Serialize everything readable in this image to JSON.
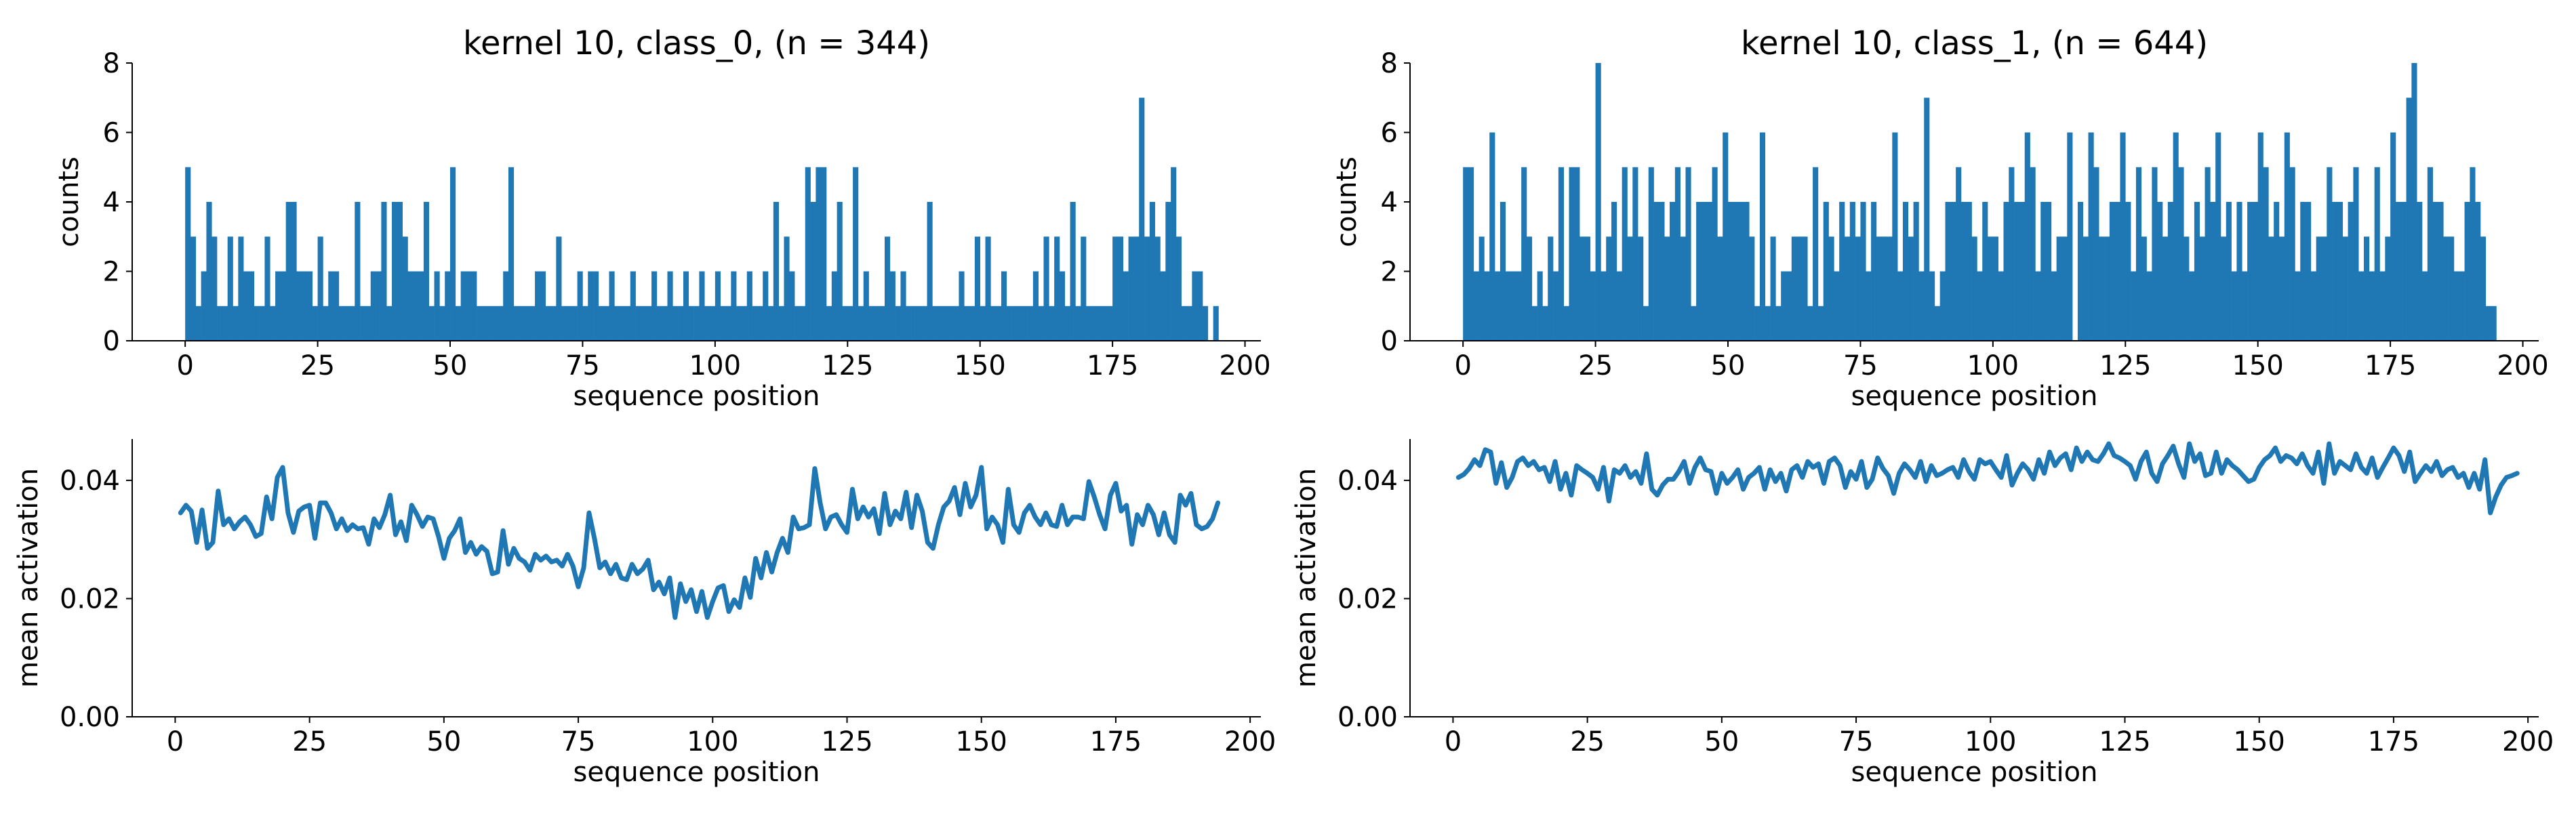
{
  "chart_data": [
    {
      "type": "bar",
      "title": "kernel 10, class_0, (n = 344)",
      "xlabel": "sequence position",
      "ylabel": "counts",
      "xlim": [
        -10,
        203
      ],
      "ylim": [
        0,
        8
      ],
      "xticks": [
        0,
        25,
        50,
        75,
        100,
        125,
        150,
        175,
        200
      ],
      "yticks": [
        0,
        2,
        4,
        6,
        8
      ],
      "grid": false,
      "color": "#1f77b4",
      "x_start": 0,
      "values": [
        5,
        3,
        1,
        2,
        4,
        3,
        1,
        1,
        3,
        1,
        3,
        2,
        2,
        1,
        1,
        3,
        1,
        2,
        2,
        4,
        4,
        2,
        2,
        2,
        1,
        3,
        1,
        2,
        2,
        1,
        1,
        1,
        4,
        1,
        1,
        2,
        2,
        4,
        1,
        4,
        4,
        3,
        2,
        2,
        2,
        4,
        1,
        2,
        1,
        2,
        5,
        1,
        2,
        2,
        2,
        1,
        1,
        1,
        1,
        1,
        2,
        5,
        1,
        1,
        1,
        1,
        2,
        2,
        1,
        1,
        3,
        1,
        1,
        1,
        2,
        1,
        2,
        2,
        1,
        1,
        2,
        1,
        1,
        1,
        2,
        1,
        1,
        1,
        2,
        1,
        1,
        2,
        1,
        1,
        2,
        1,
        1,
        2,
        1,
        1,
        2,
        1,
        1,
        2,
        1,
        1,
        2,
        1,
        1,
        2,
        1,
        4,
        1,
        3,
        2,
        1,
        1,
        5,
        4,
        5,
        5,
        1,
        2,
        4,
        1,
        1,
        5,
        1,
        2,
        1,
        1,
        1,
        3,
        2,
        1,
        2,
        1,
        1,
        1,
        1,
        4,
        1,
        1,
        1,
        1,
        1,
        2,
        1,
        1,
        3,
        1,
        3,
        1,
        1,
        2,
        1,
        1,
        1,
        1,
        1,
        2,
        1,
        3,
        1,
        3,
        2,
        1,
        4,
        1,
        3,
        1,
        1,
        1,
        1,
        1,
        3,
        3,
        2,
        3,
        3,
        7,
        3,
        4,
        3,
        2,
        4,
        5,
        3,
        1,
        1,
        2,
        2,
        1,
        0,
        1
      ]
    },
    {
      "type": "bar",
      "title": "kernel 10, class_1, (n = 644)",
      "xlabel": "sequence position",
      "ylabel": "counts",
      "xlim": [
        -10,
        203
      ],
      "ylim": [
        0,
        8
      ],
      "xticks": [
        0,
        25,
        50,
        75,
        100,
        125,
        150,
        175,
        200
      ],
      "yticks": [
        0,
        2,
        4,
        6,
        8
      ],
      "grid": false,
      "color": "#1f77b4",
      "x_start": 0,
      "values": [
        5,
        5,
        2,
        3,
        2,
        6,
        2,
        4,
        2,
        2,
        2,
        5,
        3,
        1,
        2,
        1,
        3,
        2,
        5,
        1,
        5,
        5,
        3,
        3,
        2,
        8,
        2,
        3,
        4,
        2,
        5,
        3,
        5,
        3,
        1,
        5,
        4,
        4,
        3,
        4,
        5,
        3,
        5,
        1,
        4,
        4,
        4,
        5,
        3,
        6,
        4,
        4,
        4,
        4,
        3,
        1,
        6,
        1,
        3,
        1,
        2,
        2,
        3,
        3,
        3,
        1,
        5,
        1,
        4,
        3,
        2,
        4,
        3,
        4,
        3,
        4,
        2,
        4,
        3,
        3,
        3,
        6,
        2,
        4,
        3,
        4,
        2,
        7,
        2,
        1,
        2,
        4,
        4,
        5,
        4,
        4,
        3,
        2,
        4,
        3,
        3,
        2,
        4,
        5,
        4,
        4,
        6,
        5,
        2,
        4,
        4,
        2,
        3,
        3,
        6,
        0,
        4,
        3,
        6,
        5,
        3,
        3,
        4,
        4,
        6,
        4,
        2,
        5,
        3,
        2,
        5,
        4,
        3,
        4,
        6,
        5,
        3,
        2,
        4,
        3,
        5,
        4,
        6,
        3,
        4,
        2,
        4,
        2,
        4,
        4,
        6,
        5,
        3,
        4,
        3,
        6,
        5,
        2,
        4,
        4,
        2,
        3,
        3,
        5,
        4,
        4,
        3,
        4,
        5,
        2,
        3,
        2,
        5,
        2,
        3,
        6,
        4,
        4,
        7,
        8,
        4,
        2,
        5,
        4,
        4,
        3,
        3,
        2,
        2,
        4,
        5,
        4,
        3,
        1,
        1
      ]
    },
    {
      "type": "line",
      "xlabel": "sequence position",
      "ylabel": "mean activation",
      "xlim": [
        -8,
        202
      ],
      "ylim": [
        0,
        0.047
      ],
      "xticks": [
        0,
        25,
        50,
        75,
        100,
        125,
        150,
        175,
        200
      ],
      "yticks": [
        0.0,
        0.02,
        0.04
      ],
      "ytick_labels": [
        "0.00",
        "0.02",
        "0.04"
      ],
      "grid": false,
      "color": "#1f77b4",
      "x_start": 1,
      "values": [
        0.0345,
        0.0358,
        0.0348,
        0.0295,
        0.035,
        0.0285,
        0.0295,
        0.0382,
        0.0325,
        0.0335,
        0.0318,
        0.033,
        0.0338,
        0.0325,
        0.0305,
        0.031,
        0.0372,
        0.0335,
        0.0405,
        0.0422,
        0.0345,
        0.0312,
        0.0348,
        0.0355,
        0.0358,
        0.0302,
        0.0362,
        0.0362,
        0.0345,
        0.0318,
        0.0335,
        0.0315,
        0.0325,
        0.0318,
        0.032,
        0.0292,
        0.0335,
        0.032,
        0.0342,
        0.0375,
        0.0308,
        0.033,
        0.0298,
        0.0358,
        0.0342,
        0.0322,
        0.0338,
        0.0335,
        0.0305,
        0.0268,
        0.0302,
        0.0315,
        0.0335,
        0.0278,
        0.0295,
        0.0275,
        0.0288,
        0.028,
        0.0242,
        0.0245,
        0.0315,
        0.0258,
        0.0285,
        0.0268,
        0.0262,
        0.0248,
        0.0275,
        0.0265,
        0.0272,
        0.0262,
        0.0265,
        0.0255,
        0.0275,
        0.0255,
        0.022,
        0.0252,
        0.0345,
        0.0302,
        0.0252,
        0.0262,
        0.0242,
        0.0258,
        0.0235,
        0.0232,
        0.0258,
        0.0242,
        0.025,
        0.0265,
        0.0215,
        0.0228,
        0.0208,
        0.0235,
        0.0168,
        0.0225,
        0.0195,
        0.0215,
        0.0178,
        0.0212,
        0.0168,
        0.0195,
        0.0218,
        0.0222,
        0.0178,
        0.0198,
        0.0185,
        0.0235,
        0.0202,
        0.0268,
        0.0235,
        0.0278,
        0.0245,
        0.0278,
        0.0302,
        0.0278,
        0.0338,
        0.0318,
        0.032,
        0.0325,
        0.042,
        0.0362,
        0.0318,
        0.0338,
        0.0342,
        0.0325,
        0.0312,
        0.0385,
        0.0335,
        0.0355,
        0.0338,
        0.0352,
        0.031,
        0.0378,
        0.0325,
        0.0348,
        0.0335,
        0.038,
        0.032,
        0.0375,
        0.0348,
        0.0295,
        0.0285,
        0.0325,
        0.0355,
        0.0365,
        0.0388,
        0.0342,
        0.0395,
        0.0355,
        0.0375,
        0.0422,
        0.0318,
        0.0338,
        0.0325,
        0.0295,
        0.0385,
        0.0325,
        0.0312,
        0.0345,
        0.0358,
        0.0338,
        0.0325,
        0.0345,
        0.0325,
        0.0322,
        0.0358,
        0.0325,
        0.0338,
        0.0338,
        0.0335,
        0.0398,
        0.0372,
        0.0342,
        0.0318,
        0.0375,
        0.0395,
        0.0348,
        0.0358,
        0.0292,
        0.0342,
        0.0325,
        0.0358,
        0.0342,
        0.0308,
        0.0345,
        0.0308,
        0.0295,
        0.0375,
        0.0358,
        0.0378,
        0.0325,
        0.0318,
        0.0322,
        0.0335,
        0.0362
      ]
    },
    {
      "type": "line",
      "xlabel": "sequence position",
      "ylabel": "mean activation",
      "xlim": [
        -8,
        202
      ],
      "ylim": [
        0,
        0.047
      ],
      "xticks": [
        0,
        25,
        50,
        75,
        100,
        125,
        150,
        175,
        200
      ],
      "yticks": [
        0.0,
        0.02,
        0.04
      ],
      "ytick_labels": [
        "0.00",
        "0.02",
        "0.04"
      ],
      "grid": false,
      "color": "#1f77b4",
      "x_start": 1,
      "values": [
        0.0405,
        0.041,
        0.042,
        0.0435,
        0.0425,
        0.0452,
        0.0448,
        0.0395,
        0.043,
        0.0388,
        0.0405,
        0.0432,
        0.0438,
        0.0425,
        0.0432,
        0.0418,
        0.0422,
        0.0398,
        0.0432,
        0.0385,
        0.0412,
        0.0375,
        0.0425,
        0.0418,
        0.0412,
        0.0405,
        0.0385,
        0.0422,
        0.0365,
        0.0418,
        0.0412,
        0.0425,
        0.0405,
        0.0415,
        0.0395,
        0.0445,
        0.0385,
        0.0375,
        0.0392,
        0.0402,
        0.0402,
        0.0415,
        0.0432,
        0.0395,
        0.0422,
        0.0438,
        0.0418,
        0.0415,
        0.0378,
        0.0412,
        0.0395,
        0.0405,
        0.0418,
        0.0385,
        0.0405,
        0.0412,
        0.0422,
        0.0385,
        0.0418,
        0.0398,
        0.0412,
        0.0382,
        0.0418,
        0.0425,
        0.0405,
        0.0432,
        0.0422,
        0.0428,
        0.0395,
        0.0432,
        0.0438,
        0.0425,
        0.0388,
        0.0415,
        0.0402,
        0.0432,
        0.0388,
        0.0402,
        0.0438,
        0.042,
        0.0408,
        0.0378,
        0.0412,
        0.0428,
        0.0418,
        0.0405,
        0.0432,
        0.0398,
        0.0425,
        0.0408,
        0.0412,
        0.0418,
        0.0422,
        0.0405,
        0.0435,
        0.0415,
        0.0402,
        0.0435,
        0.0428,
        0.0432,
        0.0418,
        0.0405,
        0.0442,
        0.0392,
        0.0412,
        0.0428,
        0.0418,
        0.0402,
        0.0435,
        0.0412,
        0.0448,
        0.0425,
        0.0438,
        0.0445,
        0.0418,
        0.0455,
        0.0432,
        0.0448,
        0.0435,
        0.0432,
        0.0445,
        0.0462,
        0.0442,
        0.0438,
        0.0432,
        0.0425,
        0.0402,
        0.0432,
        0.0448,
        0.0412,
        0.0398,
        0.0428,
        0.0442,
        0.0458,
        0.0428,
        0.0405,
        0.0462,
        0.0432,
        0.0445,
        0.0408,
        0.0412,
        0.0448,
        0.0412,
        0.0435,
        0.0425,
        0.0418,
        0.0408,
        0.0398,
        0.0402,
        0.0422,
        0.0435,
        0.0442,
        0.0455,
        0.0432,
        0.0442,
        0.0438,
        0.0428,
        0.0445,
        0.0425,
        0.0412,
        0.0448,
        0.0395,
        0.0462,
        0.0412,
        0.0432,
        0.0425,
        0.0418,
        0.0445,
        0.0422,
        0.0412,
        0.0438,
        0.0405,
        0.0422,
        0.0438,
        0.0455,
        0.0442,
        0.0415,
        0.0448,
        0.0398,
        0.0412,
        0.0425,
        0.0415,
        0.0432,
        0.0408,
        0.0418,
        0.0422,
        0.0405,
        0.0412,
        0.0388,
        0.0412,
        0.0385,
        0.0435,
        0.0345,
        0.0372,
        0.0392,
        0.0405,
        0.0408,
        0.0412
      ]
    }
  ]
}
